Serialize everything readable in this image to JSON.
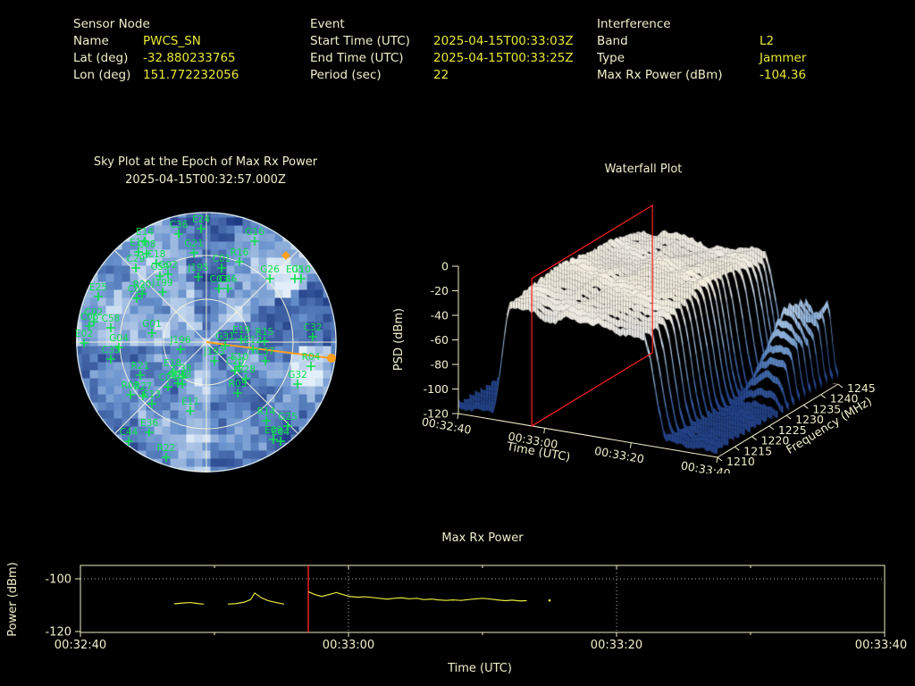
{
  "colors": {
    "background": "#000000",
    "label_pale": "#f1eecb",
    "value_yellow": "#e9e838",
    "satellite_green": "#0ddf4e",
    "interference_orange": "#ffa01e",
    "event_red": "#ff2222",
    "grid_dotted": "#b5b5b5",
    "axis_pale": "#f0ecc8",
    "series_yellow": "#e8e840"
  },
  "header": {
    "sensor": {
      "title": "Sensor Node",
      "rows": [
        {
          "label": "Name",
          "value": "PWCS_SN"
        },
        {
          "label": "Lat (deg)",
          "value": "-32.880233765"
        },
        {
          "label": "Lon (deg)",
          "value": "151.772232056"
        }
      ]
    },
    "event": {
      "title": "Event",
      "rows": [
        {
          "label": "Start Time (UTC)",
          "value": "2025-04-15T00:33:03Z"
        },
        {
          "label": "End Time (UTC)",
          "value": "2025-04-15T00:33:25Z"
        },
        {
          "label": "Period (sec)",
          "value": "22"
        }
      ]
    },
    "interference": {
      "title": "Interference",
      "rows": [
        {
          "label": "Band",
          "value": "L2"
        },
        {
          "label": "Type",
          "value": "Jammer"
        },
        {
          "label": "Max Rx Power (dBm)",
          "value": "-104.36"
        }
      ]
    }
  },
  "chart_data": [
    {
      "type": "scatter",
      "projection": "polar-sky",
      "title": "Sky Plot at the Epoch of Max Rx Power",
      "subtitle": "2025-04-15T00:32:57.000Z",
      "elevation_rings_deg": [
        0,
        30,
        60
      ],
      "azimuth_spoke_step_deg": 45,
      "outer_radius_px": 145,
      "satellites": [
        [
          "E24",
          -6,
          -127
        ],
        [
          "C36",
          -31,
          -121
        ],
        [
          "E14",
          -69,
          -113
        ],
        [
          "E16",
          -76,
          -101
        ],
        [
          "C08",
          -67,
          -99
        ],
        [
          "C18",
          -56,
          -88
        ],
        [
          "C29",
          -79,
          -83
        ],
        [
          "G21",
          -14,
          -100
        ],
        [
          "G16",
          54,
          -113
        ],
        [
          "R16",
          37,
          -90
        ],
        [
          "G26",
          71,
          -71
        ],
        [
          "E05",
          99,
          -71
        ],
        [
          "G10",
          106,
          -71
        ],
        [
          "C59",
          -52,
          -74
        ],
        [
          "J195",
          -9,
          -73
        ],
        [
          "C01",
          17,
          -83
        ],
        [
          "G02",
          -43,
          -76
        ],
        [
          "C46",
          24,
          -60
        ],
        [
          "C03",
          14,
          -60
        ],
        [
          "J199",
          -49,
          -56
        ],
        [
          "R20",
          -72,
          -54
        ],
        [
          "C05",
          -78,
          -49
        ],
        [
          "E25",
          -121,
          -51
        ],
        [
          "C02",
          -126,
          -23
        ],
        [
          "C06",
          -131,
          -18
        ],
        [
          "C58",
          -107,
          -16
        ],
        [
          "G01",
          -61,
          -10
        ],
        [
          "E02",
          -137,
          1
        ],
        [
          "G04",
          -98,
          6
        ],
        [
          "J196",
          -29,
          8
        ],
        [
          "C33",
          -107,
          19
        ],
        [
          "R21",
          -74,
          37
        ],
        [
          "G31",
          21,
          4
        ],
        [
          "E19",
          39,
          -3
        ],
        [
          "E12",
          52,
          8
        ],
        [
          "R15",
          65,
          -1
        ],
        [
          "C32",
          119,
          -6
        ],
        [
          "J193",
          9,
          21
        ],
        [
          "E10",
          37,
          27
        ],
        [
          "C37",
          66,
          21
        ],
        [
          "C20",
          32,
          32
        ],
        [
          "G28",
          44,
          41
        ],
        [
          "R04",
          117,
          27
        ],
        [
          "G32",
          102,
          47
        ],
        [
          "R05",
          35,
          57
        ],
        [
          "E18",
          -38,
          34
        ],
        [
          "C38",
          -27,
          40
        ],
        [
          "C48",
          -27,
          47
        ],
        [
          "C45",
          -32,
          46
        ],
        [
          "C04",
          -43,
          50
        ],
        [
          "R08",
          -85,
          59
        ],
        [
          "R27",
          -71,
          60
        ],
        [
          "E13",
          -61,
          69
        ],
        [
          "E11",
          -18,
          77
        ],
        [
          "E36",
          -64,
          101
        ],
        [
          "C44",
          -87,
          111
        ],
        [
          "R22",
          -45,
          129
        ],
        [
          "R14",
          67,
          88
        ],
        [
          "G25",
          91,
          94
        ],
        [
          "E09",
          75,
          109
        ],
        [
          "E04",
          83,
          111
        ]
      ],
      "interference_overlay": {
        "bearing_line_end": [
          140,
          18
        ],
        "edge_dot": [
          140,
          18
        ],
        "sky_marker": [
          89,
          -97
        ]
      }
    },
    {
      "type": "surface",
      "title": "Waterfall Plot",
      "xlabel": "Time (UTC)",
      "x_ticks": [
        "00:32:40",
        "00:33:00",
        "00:33:20",
        "00:33:40"
      ],
      "ylabel": "Frequency (MHz)",
      "y_ticks": [
        1210,
        1215,
        1220,
        1225,
        1230,
        1235,
        1240,
        1245
      ],
      "zlabel": "PSD (dBm)",
      "z_ticks": [
        0,
        -20,
        -40,
        -60,
        -80,
        -100,
        -120
      ],
      "zlim": [
        -120,
        0
      ],
      "event_plane_time": "00:32:57",
      "surface_summary": {
        "noise_floor_dbm": -110,
        "plateau_dbm": -22,
        "plateau_time_range": [
          "00:32:48",
          "00:33:25"
        ],
        "freq_range_mhz": [
          1210,
          1245
        ]
      }
    },
    {
      "type": "line",
      "title": "Max Rx Power",
      "xlabel": "Time (UTC)",
      "ylabel": "Power (dBm)",
      "x_start": "00:32:40",
      "x_ticks": [
        [
          0,
          "00:32:40"
        ],
        [
          20,
          "00:33:00"
        ],
        [
          40,
          "00:33:20"
        ],
        [
          60,
          "00:33:40"
        ]
      ],
      "x_minor_ticks_s": [
        10,
        30,
        50
      ],
      "y_ticks": [
        -100,
        -120
      ],
      "grid_y_dbm": -100,
      "grid_x_s": [
        20,
        40
      ],
      "epoch_marker_s": 17,
      "segments": [
        [
          [
            7.0,
            -109.5
          ],
          [
            7.6,
            -109.2
          ],
          [
            8.2,
            -109.0
          ],
          [
            8.8,
            -109.4
          ],
          [
            9.2,
            -109.6
          ]
        ],
        [
          [
            11.0,
            -109.6
          ],
          [
            11.6,
            -109.4
          ],
          [
            12.2,
            -108.9
          ],
          [
            12.7,
            -107.9
          ],
          [
            13.0,
            -105.4
          ],
          [
            13.5,
            -107.2
          ],
          [
            14.0,
            -108.3
          ],
          [
            14.6,
            -109.0
          ],
          [
            15.2,
            -109.6
          ]
        ],
        [
          [
            17.0,
            -104.9
          ],
          [
            17.5,
            -106.0
          ],
          [
            18.0,
            -106.7
          ],
          [
            18.6,
            -105.9
          ],
          [
            19.1,
            -105.2
          ],
          [
            19.6,
            -106.0
          ],
          [
            20.1,
            -106.7
          ],
          [
            20.7,
            -107.0
          ],
          [
            21.2,
            -106.8
          ],
          [
            21.8,
            -107.1
          ],
          [
            22.3,
            -107.4
          ],
          [
            22.9,
            -107.7
          ],
          [
            23.4,
            -107.4
          ],
          [
            24.0,
            -107.2
          ],
          [
            24.5,
            -107.6
          ],
          [
            25.1,
            -107.4
          ],
          [
            25.6,
            -107.9
          ],
          [
            26.2,
            -107.7
          ],
          [
            26.7,
            -108.0
          ],
          [
            27.3,
            -108.2
          ],
          [
            27.8,
            -108.0
          ],
          [
            28.4,
            -108.2
          ],
          [
            28.9,
            -107.9
          ],
          [
            29.5,
            -107.6
          ],
          [
            30.0,
            -107.4
          ],
          [
            30.6,
            -107.7
          ],
          [
            31.1,
            -108.0
          ],
          [
            31.7,
            -108.3
          ],
          [
            32.2,
            -108.1
          ],
          [
            32.8,
            -108.4
          ],
          [
            33.3,
            -108.3
          ]
        ]
      ],
      "lone_points": [
        [
          35.0,
          -108.2
        ]
      ]
    }
  ]
}
